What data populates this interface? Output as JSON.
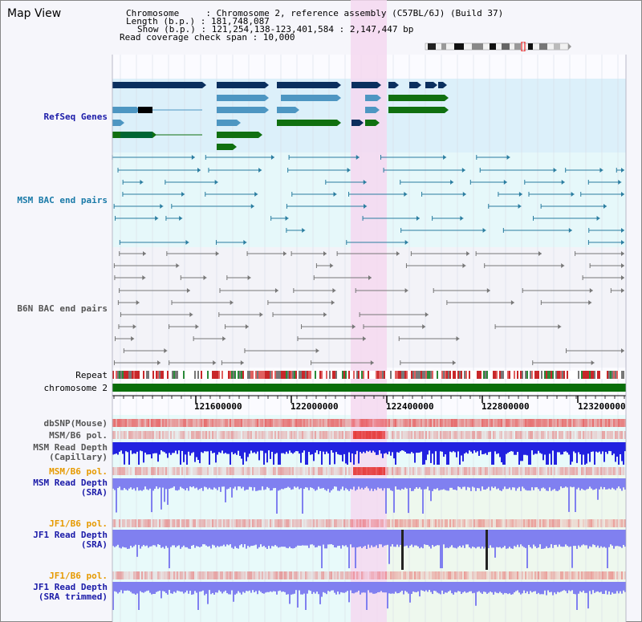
{
  "title": "Map View",
  "info": {
    "chromosome": "Chromosome     : Chromosome 2, reference assembly (C57BL/6J) (Build 37)",
    "length": "Length (b.p.) : 181,748,087",
    "show": "Show (b.p.) : 121,254,138-123,401,584 : 2,147,447 bp",
    "coverage": "Read coverage check span : 10,000"
  },
  "tracks": {
    "refseq": "RefSeq Genes",
    "msm_bac": "MSM BAC end pairs",
    "b6n_bac": "B6N BAC end pairs",
    "repeat": "Repeat",
    "chromosome": "chromosome 2",
    "dbsnp": "dbSNP(Mouse)",
    "msm_b6_pol_1": "MSM/B6 pol.",
    "msm_depth_cap_1": "MSM Read Depth",
    "msm_depth_cap_2": "(Capillary)",
    "msm_b6_pol_2": "MSM/B6 pol.",
    "msm_depth_sra_1": "MSM Read Depth",
    "msm_depth_sra_2": "(SRA)",
    "jf1_b6_pol_1": "JF1/B6 pol.",
    "jf1_depth_sra_1": "JF1 Read Depth",
    "jf1_depth_sra_2": "(SRA)",
    "jf1_b6_pol_2": "JF1/B6 pol.",
    "jf1_depth_trim_1": "JF1 Read Depth",
    "jf1_depth_trim_2": "(SRA trimmed)"
  },
  "ruler": {
    "ticks": [
      "121600000",
      "122000000",
      "122400000",
      "122800000",
      "123200000"
    ]
  },
  "colors": {
    "refseq_bg": "#dcf0fa",
    "msm_bg": "#e6f8fa",
    "highlight": "#f5d8f0",
    "dark_gene": "#0b2f5e",
    "mid_gene": "#4d96c2",
    "green_gene": "#107010",
    "chromosome_bar": "#0a6e0a",
    "msm_pair": "#2a7da0",
    "b6n_pair": "#777777",
    "depth_blue": "#2222e0",
    "depth_sra": "#8080f0",
    "label_blue": "#1a1aa8",
    "label_orange": "#e69a00",
    "label_gray": "#555555"
  }
}
